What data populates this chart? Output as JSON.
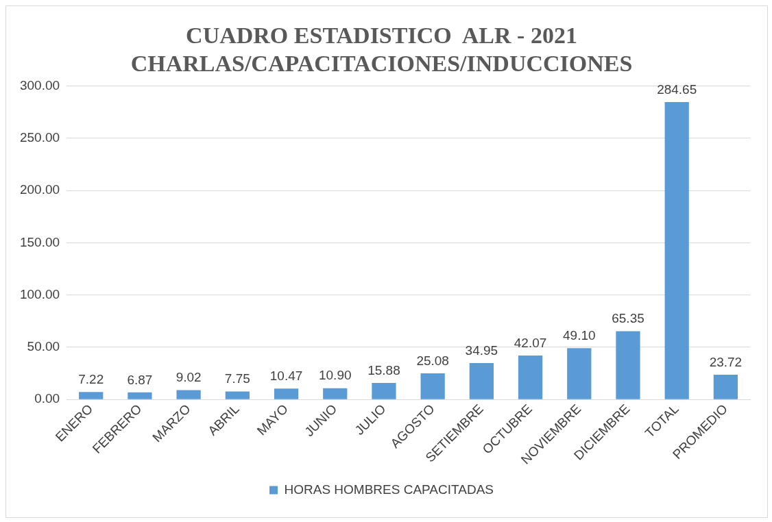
{
  "chart_data": {
    "type": "bar",
    "title": "CUADRO ESTADISTICO  ALR - 2021\nCHARLAS/CAPACITACIONES/INDUCCIONES",
    "categories": [
      "ENERO",
      "FEBRERO",
      "MARZO",
      "ABRIL",
      "MAYO",
      "JUNIO",
      "JULIO",
      "AGOSTO",
      "SETIEMBRE",
      "OCTUBRE",
      "NOVIEMBRE",
      "DICIEMBRE",
      "TOTAL",
      "PROMEDIO"
    ],
    "series": [
      {
        "name": "HORAS HOMBRES CAPACITADAS",
        "color": "#5b9bd5",
        "values": [
          7.22,
          6.87,
          9.02,
          7.75,
          10.47,
          10.9,
          15.88,
          25.08,
          34.95,
          42.07,
          49.1,
          65.35,
          284.65,
          23.72
        ],
        "value_labels": [
          "7.22",
          "6.87",
          "9.02",
          "7.75",
          "10.47",
          "10.90",
          "15.88",
          "25.08",
          "34.95",
          "42.07",
          "49.10",
          "65.35",
          "284.65",
          "23.72"
        ]
      }
    ],
    "ylim": [
      0,
      300
    ],
    "yticks": [
      {
        "value": 0,
        "label": "0.00"
      },
      {
        "value": 50,
        "label": "50.00"
      },
      {
        "value": 100,
        "label": "100.00"
      },
      {
        "value": 150,
        "label": "150.00"
      },
      {
        "value": 200,
        "label": "200.00"
      },
      {
        "value": 250,
        "label": "250.00"
      },
      {
        "value": 300,
        "label": "300.00"
      }
    ],
    "grid": "y",
    "legend": "bottom"
  }
}
